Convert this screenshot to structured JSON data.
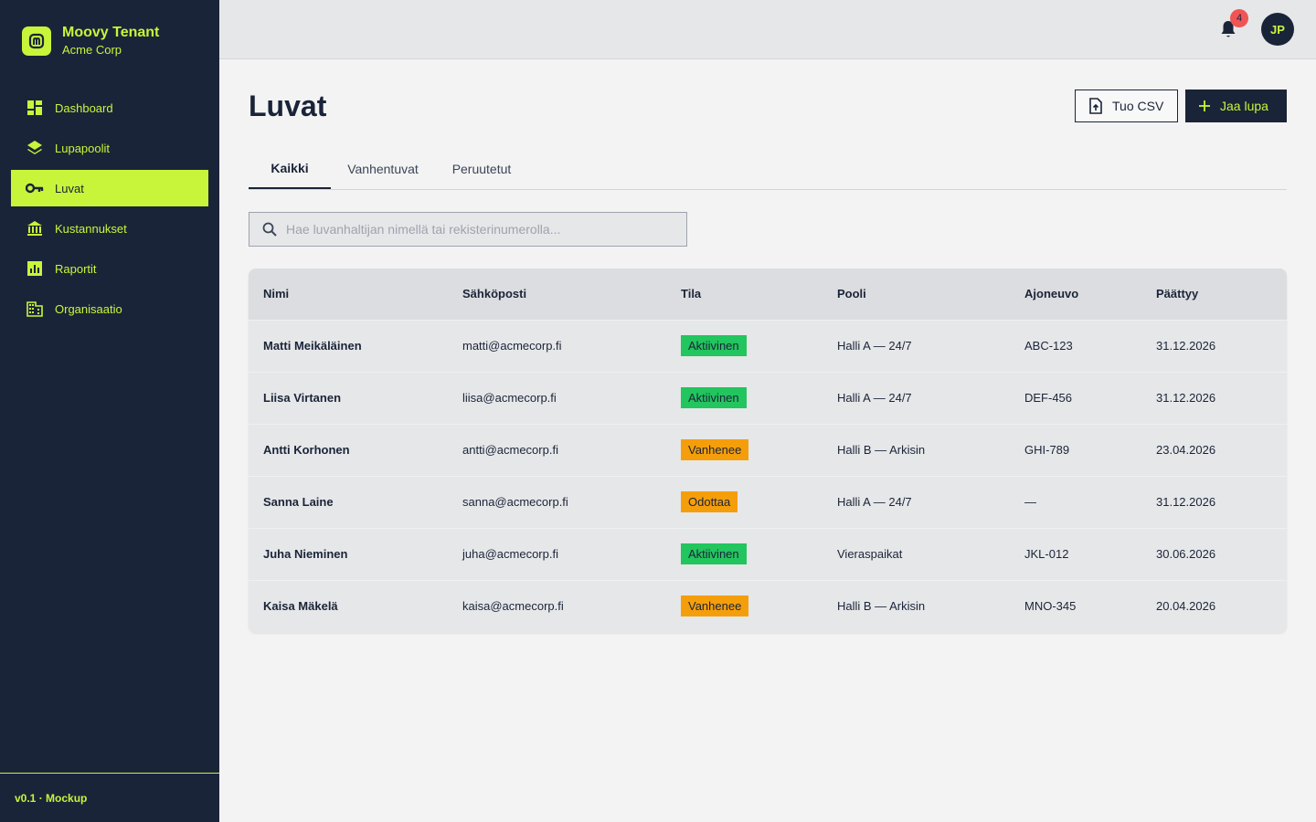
{
  "brand": {
    "title": "Moovy Tenant",
    "subtitle": "Acme Corp",
    "logo_icon": "m-logo-icon",
    "accent": "#c8f53a",
    "dark": "#1a2438"
  },
  "nav": [
    {
      "label": "Dashboard",
      "icon": "dashboard-icon",
      "active": false
    },
    {
      "label": "Lupapoolit",
      "icon": "layers-icon",
      "active": false
    },
    {
      "label": "Luvat",
      "icon": "key-icon",
      "active": true
    },
    {
      "label": "Kustannukset",
      "icon": "bank-icon",
      "active": false
    },
    {
      "label": "Raportit",
      "icon": "bar-chart-icon",
      "active": false
    },
    {
      "label": "Organisaatio",
      "icon": "building-icon",
      "active": false
    }
  ],
  "footer": {
    "version": "v0.1 · Mockup"
  },
  "topbar": {
    "notification_count": "4",
    "avatar_initials": "JP"
  },
  "page": {
    "title": "Luvat",
    "import_label": "Tuo CSV",
    "add_label": "Jaa lupa"
  },
  "tabs": [
    {
      "label": "Kaikki",
      "active": true
    },
    {
      "label": "Vanhentuvat",
      "active": false
    },
    {
      "label": "Peruutetut",
      "active": false
    }
  ],
  "search": {
    "placeholder": "Hae luvanhaltijan nimellä tai rekisterinumerolla...",
    "value": ""
  },
  "table": {
    "columns": [
      "Nimi",
      "Sähköposti",
      "Tila",
      "Pooli",
      "Ajoneuvo",
      "Päättyy"
    ],
    "rows": [
      {
        "name": "Matti Meikäläinen",
        "email": "matti@acmecorp.fi",
        "status": "Aktiivinen",
        "status_color": "#22c55e",
        "pool": "Halli A — 24/7",
        "vehicle": "ABC-123",
        "ends": "31.12.2026"
      },
      {
        "name": "Liisa Virtanen",
        "email": "liisa@acmecorp.fi",
        "status": "Aktiivinen",
        "status_color": "#22c55e",
        "pool": "Halli A — 24/7",
        "vehicle": "DEF-456",
        "ends": "31.12.2026"
      },
      {
        "name": "Antti Korhonen",
        "email": "antti@acmecorp.fi",
        "status": "Vanhenee",
        "status_color": "#f59e0b",
        "pool": "Halli B — Arkisin",
        "vehicle": "GHI-789",
        "ends": "23.04.2026"
      },
      {
        "name": "Sanna Laine",
        "email": "sanna@acmecorp.fi",
        "status": "Odottaa",
        "status_color": "#f59e0b",
        "pool": "Halli A — 24/7",
        "vehicle": "—",
        "ends": "31.12.2026"
      },
      {
        "name": "Juha Nieminen",
        "email": "juha@acmecorp.fi",
        "status": "Aktiivinen",
        "status_color": "#22c55e",
        "pool": "Vieraspaikat",
        "vehicle": "JKL-012",
        "ends": "30.06.2026"
      },
      {
        "name": "Kaisa Mäkelä",
        "email": "kaisa@acmecorp.fi",
        "status": "Vanhenee",
        "status_color": "#f59e0b",
        "pool": "Halli B — Arkisin",
        "vehicle": "MNO-345",
        "ends": "20.04.2026"
      }
    ]
  }
}
